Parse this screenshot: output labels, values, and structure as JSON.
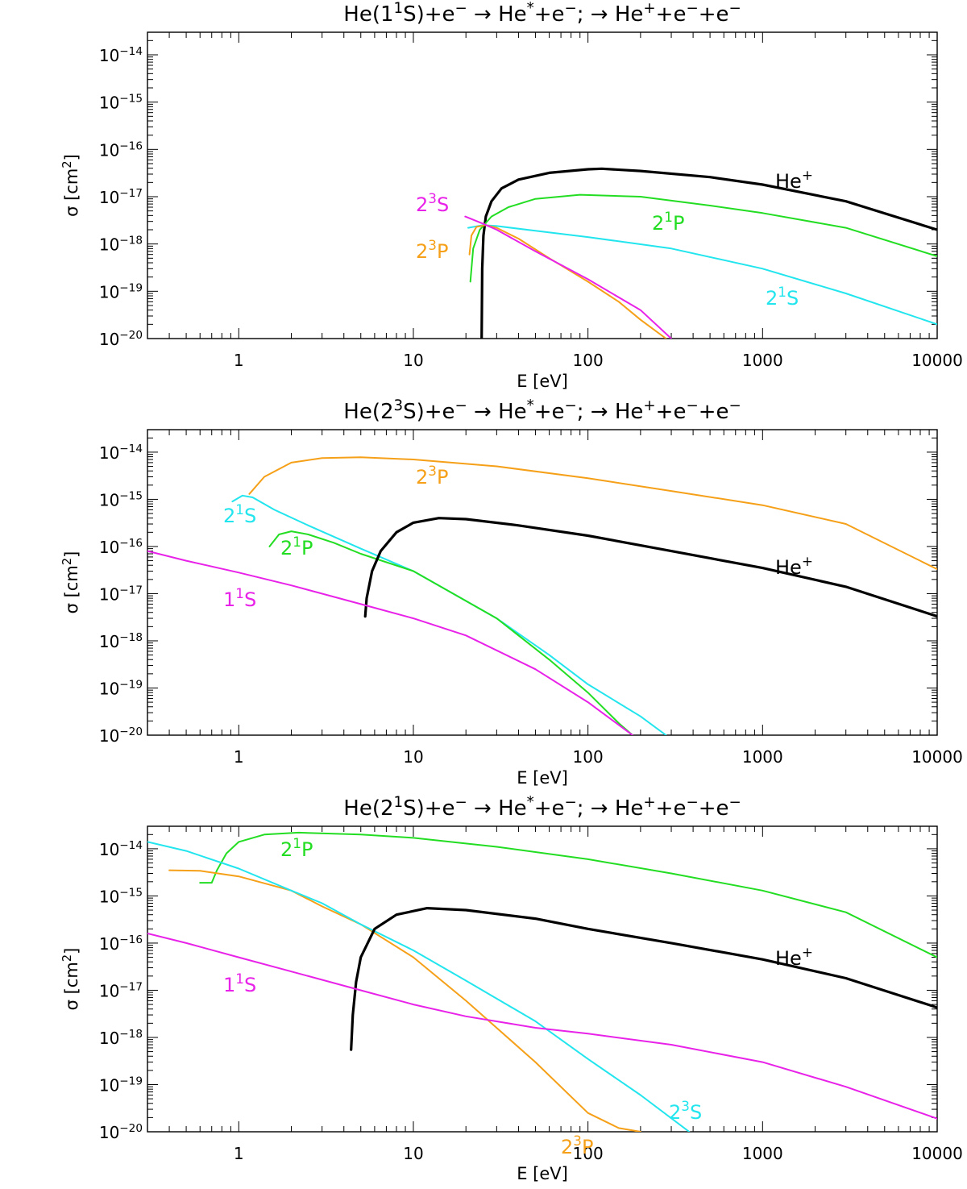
{
  "chart_data": [
    {
      "type": "line",
      "title": {
        "pre": "He(1",
        "sup1": "1",
        "mid1": "S)+e",
        "sup2": "−",
        "mid2": " → He",
        "sup3": "*",
        "mid3": "+e",
        "sup4": "−",
        "mid4": "; → He",
        "sup5": "+",
        "mid5": "+e",
        "sup6": "−",
        "mid6": "+e",
        "sup7": "−"
      },
      "xlabel": "E [eV]",
      "ylabel": {
        "base": "σ [cm",
        "sup": "2",
        "end": "]"
      },
      "xscale": "log",
      "yscale": "log",
      "xlim": [
        0.3,
        10000
      ],
      "ylim": [
        1e-20,
        3e-14
      ],
      "x_ticks": [
        "1",
        "10",
        "100",
        "1000",
        "10000"
      ],
      "y_ticks": [
        {
          "exp": "−14"
        },
        {
          "exp": "−15"
        },
        {
          "exp": "−16"
        },
        {
          "exp": "−17"
        },
        {
          "exp": "−18"
        },
        {
          "exp": "−19"
        },
        {
          "exp": "−20"
        }
      ],
      "series": [
        {
          "label": {
            "base": "He",
            "sup": "+",
            "end": ""
          },
          "color": "#000000",
          "bold": true,
          "x": [
            24.6,
            24.8,
            25.2,
            26,
            28,
            32,
            40,
            60,
            100,
            120,
            200,
            500,
            1000,
            3000,
            10000
          ],
          "y": [
            1e-20,
            3e-19,
            1.5e-18,
            3.8e-18,
            8e-18,
            1.5e-17,
            2.3e-17,
            3.2e-17,
            3.8e-17,
            3.9e-17,
            3.5e-17,
            2.6e-17,
            1.8e-17,
            8e-18,
            2e-18
          ]
        },
        {
          "label": {
            "base": "2",
            "sup": "1",
            "end": "P"
          },
          "color": "#22dd22",
          "bold": false,
          "x": [
            21.2,
            22,
            24,
            28,
            35,
            50,
            90,
            200,
            500,
            1000,
            3000,
            10000
          ],
          "y": [
            1.6e-19,
            8e-19,
            2e-18,
            3.8e-18,
            6e-18,
            9e-18,
            1.1e-17,
            1e-17,
            6.5e-18,
            4.5e-18,
            2.2e-18,
            5.5e-19
          ]
        },
        {
          "label": {
            "base": "2",
            "sup": "1",
            "end": "S"
          },
          "color": "#22e5ee",
          "bold": false,
          "x": [
            20.6,
            25,
            30,
            50,
            100,
            300,
            1000,
            3000,
            10000
          ],
          "y": [
            2.2e-18,
            2.5e-18,
            2.4e-18,
            1.9e-18,
            1.4e-18,
            8e-19,
            3e-19,
            9e-20,
            2e-20
          ]
        },
        {
          "label": {
            "base": "2",
            "sup": "3",
            "end": "P"
          },
          "color": "#f5a018",
          "bold": false,
          "x": [
            20.96,
            21.5,
            23,
            26,
            30,
            40,
            60,
            100,
            150,
            200,
            280
          ],
          "y": [
            6e-19,
            1.5e-18,
            2.3e-18,
            2.5e-18,
            2.2e-18,
            1.3e-18,
            5e-19,
            1.6e-19,
            6e-20,
            2.5e-20,
            1e-20
          ]
        },
        {
          "label": {
            "base": "2",
            "sup": "3",
            "end": "S"
          },
          "color": "#e822e8",
          "bold": false,
          "x": [
            19.8,
            25,
            30,
            50,
            100,
            200,
            300
          ],
          "y": [
            3.8e-18,
            2.7e-18,
            2e-18,
            7e-19,
            1.8e-19,
            4e-20,
            1e-20
          ]
        }
      ]
    },
    {
      "type": "line",
      "title": {
        "pre": "He(2",
        "sup1": "3",
        "mid1": "S)+e",
        "sup2": "−",
        "mid2": " → He",
        "sup3": "*",
        "mid3": "+e",
        "sup4": "−",
        "mid4": "; → He",
        "sup5": "+",
        "mid5": "+e",
        "sup6": "−",
        "mid6": "+e",
        "sup7": "−"
      },
      "xlabel": "E [eV]",
      "ylabel": {
        "base": "σ [cm",
        "sup": "2",
        "end": "]"
      },
      "xscale": "log",
      "yscale": "log",
      "xlim": [
        0.3,
        10000
      ],
      "ylim": [
        1e-20,
        3e-14
      ],
      "x_ticks": [
        "1",
        "10",
        "100",
        "1000",
        "10000"
      ],
      "y_ticks": [
        {
          "exp": "−14"
        },
        {
          "exp": "−15"
        },
        {
          "exp": "−16"
        },
        {
          "exp": "−17"
        },
        {
          "exp": "−18"
        },
        {
          "exp": "−19"
        },
        {
          "exp": "−20"
        }
      ],
      "series": [
        {
          "label": {
            "base": "2",
            "sup": "3",
            "end": "P"
          },
          "color": "#f5a018",
          "bold": false,
          "x": [
            1.15,
            1.4,
            2,
            3,
            5,
            10,
            30,
            100,
            300,
            1000,
            3000,
            10000
          ],
          "y": [
            1.3e-15,
            3e-15,
            6e-15,
            7.5e-15,
            7.8e-15,
            7e-15,
            5e-15,
            2.8e-15,
            1.5e-15,
            7.5e-16,
            3e-16,
            3.3e-17
          ]
        },
        {
          "label": {
            "base": "2",
            "sup": "1",
            "end": "S"
          },
          "color": "#22e5ee",
          "bold": false,
          "x": [
            0.92,
            1.05,
            1.2,
            1.6,
            2.5,
            5,
            10,
            30,
            60,
            100,
            200,
            280
          ],
          "y": [
            9e-16,
            1.2e-15,
            1.1e-15,
            6e-16,
            2.8e-16,
            9e-17,
            3e-17,
            3e-18,
            5e-19,
            1.2e-19,
            2.5e-20,
            1e-20
          ]
        },
        {
          "label": {
            "base": "2",
            "sup": "1",
            "end": "P"
          },
          "color": "#22dd22",
          "bold": false,
          "x": [
            1.5,
            1.7,
            2,
            2.5,
            3.5,
            5,
            10,
            30,
            60,
            100,
            150,
            180
          ],
          "y": [
            1e-16,
            1.8e-16,
            2.1e-16,
            1.8e-16,
            1.2e-16,
            7e-17,
            3e-17,
            3e-18,
            4e-19,
            8e-20,
            1.8e-20,
            1e-20
          ]
        },
        {
          "label": {
            "base": "He",
            "sup": "+",
            "end": ""
          },
          "color": "#000000",
          "bold": true,
          "x": [
            5.3,
            5.4,
            5.8,
            6.5,
            8,
            10,
            14,
            20,
            40,
            100,
            300,
            1000,
            3000,
            10000
          ],
          "y": [
            3.3e-18,
            8e-18,
            3e-17,
            8e-17,
            2e-16,
            3.2e-16,
            4e-16,
            3.8e-16,
            2.8e-16,
            1.7e-16,
            8e-17,
            3.5e-17,
            1.4e-17,
            3.3e-18
          ]
        },
        {
          "label": {
            "base": "1",
            "sup": "1",
            "end": "S"
          },
          "color": "#e822e8",
          "bold": false,
          "x": [
            0.3,
            0.5,
            1,
            2,
            5,
            10,
            20,
            50,
            100,
            180
          ],
          "y": [
            8e-17,
            5e-17,
            2.8e-17,
            1.5e-17,
            6e-18,
            3e-18,
            1.3e-18,
            2.5e-19,
            5e-20,
            1e-20
          ]
        }
      ]
    },
    {
      "type": "line",
      "title": {
        "pre": "He(2",
        "sup1": "1",
        "mid1": "S)+e",
        "sup2": "−",
        "mid2": " → He",
        "sup3": "*",
        "mid3": "+e",
        "sup4": "−",
        "mid4": "; → He",
        "sup5": "+",
        "mid5": "+e",
        "sup6": "−",
        "mid6": "+e",
        "sup7": "−"
      },
      "xlabel": "E [eV]",
      "ylabel": {
        "base": "σ [cm",
        "sup": "2",
        "end": "]"
      },
      "xscale": "log",
      "yscale": "log",
      "xlim": [
        0.3,
        10000
      ],
      "ylim": [
        1e-20,
        3e-14
      ],
      "x_ticks": [
        "1",
        "10",
        "100",
        "1000",
        "10000"
      ],
      "y_ticks": [
        {
          "exp": "−14"
        },
        {
          "exp": "−15"
        },
        {
          "exp": "−16"
        },
        {
          "exp": "−17"
        },
        {
          "exp": "−18"
        },
        {
          "exp": "−19"
        },
        {
          "exp": "−20"
        }
      ],
      "series": [
        {
          "label": {
            "base": "2",
            "sup": "1",
            "end": "P"
          },
          "color": "#22dd22",
          "bold": false,
          "x": [
            0.6,
            0.7,
            0.75,
            0.85,
            1,
            1.4,
            2.2,
            5,
            10,
            30,
            100,
            300,
            1000,
            3000,
            10000
          ],
          "y": [
            1.9e-15,
            1.9e-15,
            3.5e-15,
            8e-15,
            1.4e-14,
            2e-14,
            2.2e-14,
            2e-14,
            1.7e-14,
            1.1e-14,
            6e-15,
            3e-15,
            1.3e-15,
            4.5e-16,
            5e-17
          ]
        },
        {
          "label": {
            "base": "2",
            "sup": "3",
            "end": "P"
          },
          "color": "#f5a018",
          "bold": false,
          "x": [
            0.4,
            0.6,
            1,
            2,
            3,
            5,
            10,
            20,
            50,
            100,
            150,
            200
          ],
          "y": [
            3.5e-15,
            3.4e-15,
            2.6e-15,
            1.3e-15,
            6e-16,
            2.5e-16,
            5e-17,
            6e-18,
            3e-19,
            2.5e-20,
            1.2e-20,
            1e-20
          ]
        },
        {
          "label": {
            "base": "2",
            "sup": "3",
            "end": "S"
          },
          "color": "#22e5ee",
          "bold": false,
          "x": [
            0.3,
            0.5,
            1,
            2,
            3,
            5,
            10,
            20,
            50,
            100,
            200,
            380
          ],
          "y": [
            1.4e-14,
            9e-15,
            3.8e-15,
            1.3e-15,
            7e-16,
            2.5e-16,
            7e-17,
            1.6e-17,
            2.2e-18,
            3.5e-19,
            6e-20,
            1e-20
          ]
        },
        {
          "label": {
            "base": "He",
            "sup": "+",
            "end": ""
          },
          "color": "#000000",
          "bold": true,
          "x": [
            4.4,
            4.5,
            4.7,
            5,
            6,
            8,
            12,
            20,
            50,
            100,
            300,
            1000,
            3000,
            10000
          ],
          "y": [
            5.5e-19,
            3e-18,
            1.5e-17,
            5e-17,
            2e-16,
            4e-16,
            5.5e-16,
            5e-16,
            3.3e-16,
            2e-16,
            1e-16,
            4.5e-17,
            1.8e-17,
            4.3e-18
          ]
        },
        {
          "label": {
            "base": "1",
            "sup": "1",
            "end": "S"
          },
          "color": "#e822e8",
          "bold": false,
          "x": [
            0.3,
            0.5,
            1,
            2,
            5,
            10,
            20,
            50,
            100,
            300,
            1000,
            3000,
            10000
          ],
          "y": [
            1.6e-16,
            1e-16,
            5e-17,
            2.5e-17,
            1e-17,
            5e-18,
            2.8e-18,
            1.6e-18,
            1.2e-18,
            7e-19,
            3e-19,
            9e-20,
            1.9e-20
          ]
        }
      ]
    }
  ]
}
